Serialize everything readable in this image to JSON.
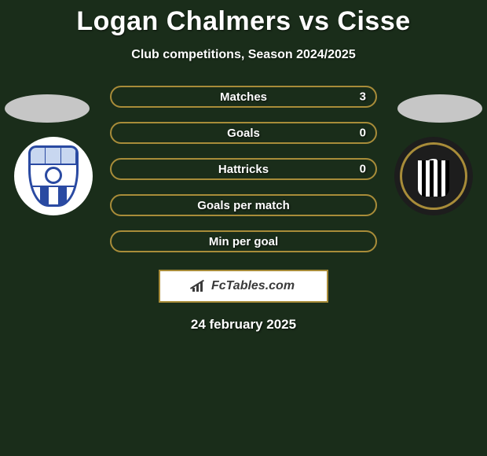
{
  "title": "Logan Chalmers vs Cisse",
  "subtitle": "Club competitions, Season 2024/2025",
  "accent_color": "#a88c39",
  "background_color": "#1a2d1a",
  "stats": [
    {
      "label": "Matches",
      "value": "3"
    },
    {
      "label": "Goals",
      "value": "0"
    },
    {
      "label": "Hattricks",
      "value": "0"
    },
    {
      "label": "Goals per match",
      "value": ""
    },
    {
      "label": "Min per goal",
      "value": ""
    }
  ],
  "brand": "FcTables.com",
  "date": "24 february 2025",
  "left_club": {
    "name": "Tranmere Rovers",
    "primary": "#2a4aa2",
    "secondary": "#ffffff"
  },
  "right_club": {
    "name": "Notts County",
    "primary": "#000000",
    "secondary": "#ffffff",
    "ring": "#a88c39"
  }
}
